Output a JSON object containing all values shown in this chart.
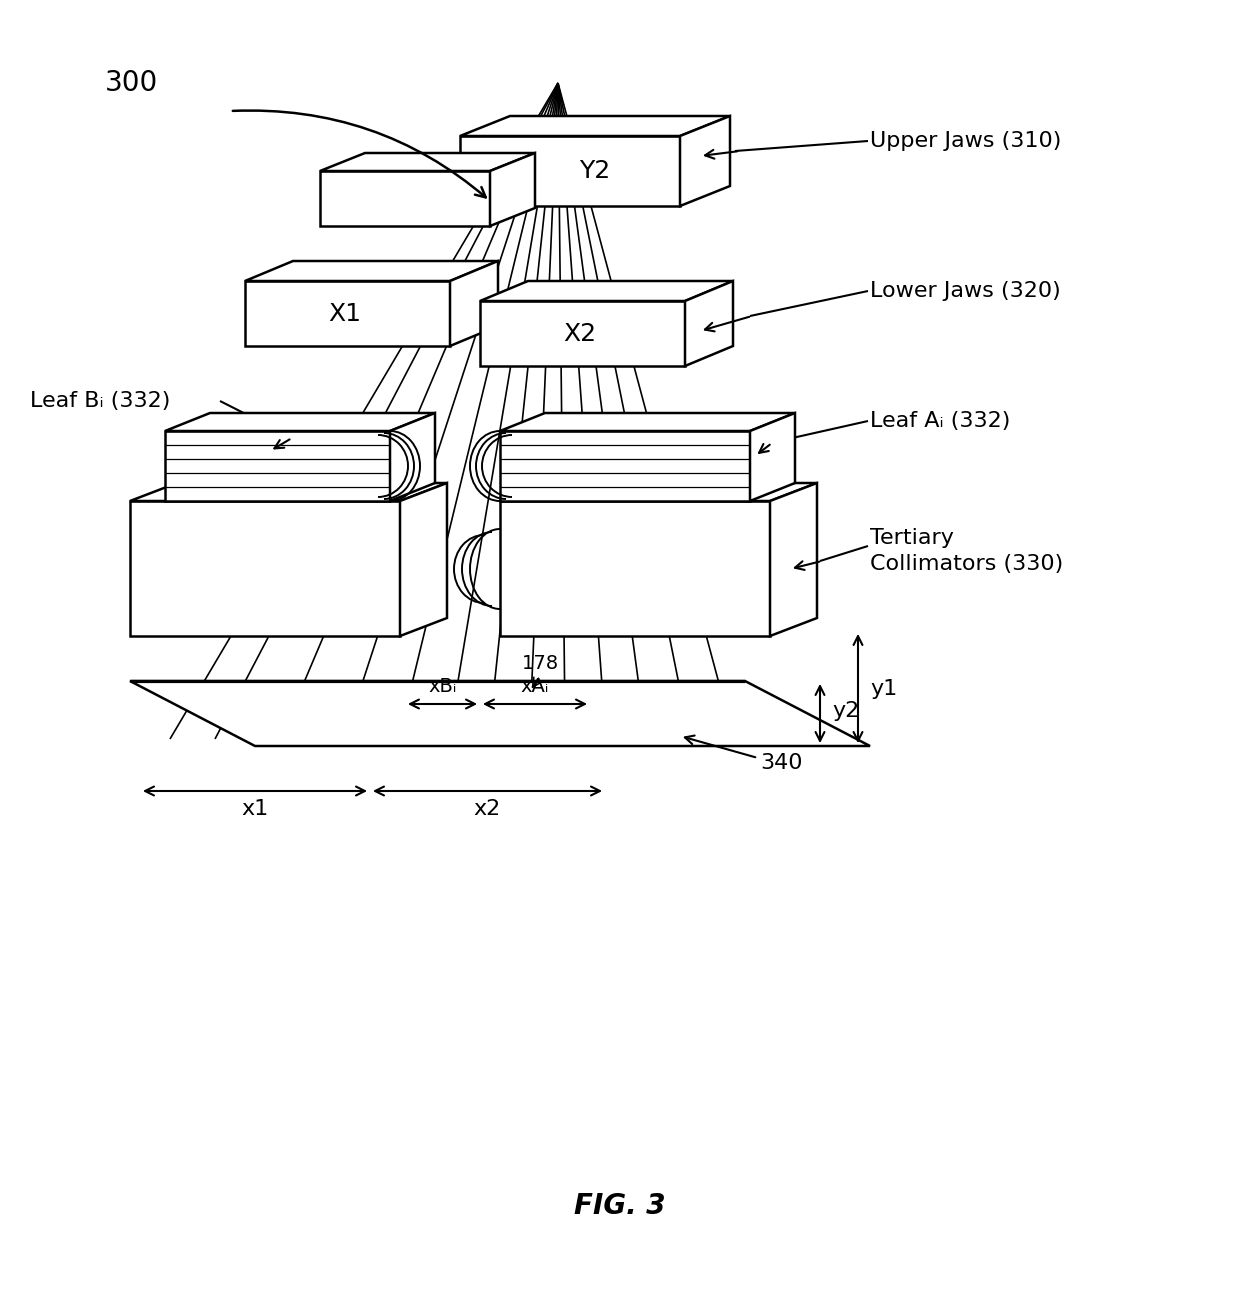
{
  "bg_color": "#ffffff",
  "line_color": "#000000",
  "fig_label": "FIG. 3",
  "ref_300": "300",
  "labels": {
    "upper_jaws": "Upper Jaws (310)",
    "lower_jaws": "Lower Jaws (320)",
    "leaf_bi": "Leaf Bᵢ (332)",
    "leaf_ai": "Leaf Aᵢ (332)",
    "tertiary": "Tertiary\nCollimators (330)",
    "y2_label": "Y2",
    "x1_label": "X1",
    "x2_label": "X2",
    "ref_340": "340",
    "ref_178": "178",
    "xbi_label": "xBᵢ",
    "xai_label": "xAᵢ",
    "x1_dim": "x1",
    "x2_dim": "x2",
    "y1_dim": "y1",
    "y2_dim": "y2"
  },
  "font_size_large": 18,
  "font_size_medium": 16,
  "font_size_small": 14
}
